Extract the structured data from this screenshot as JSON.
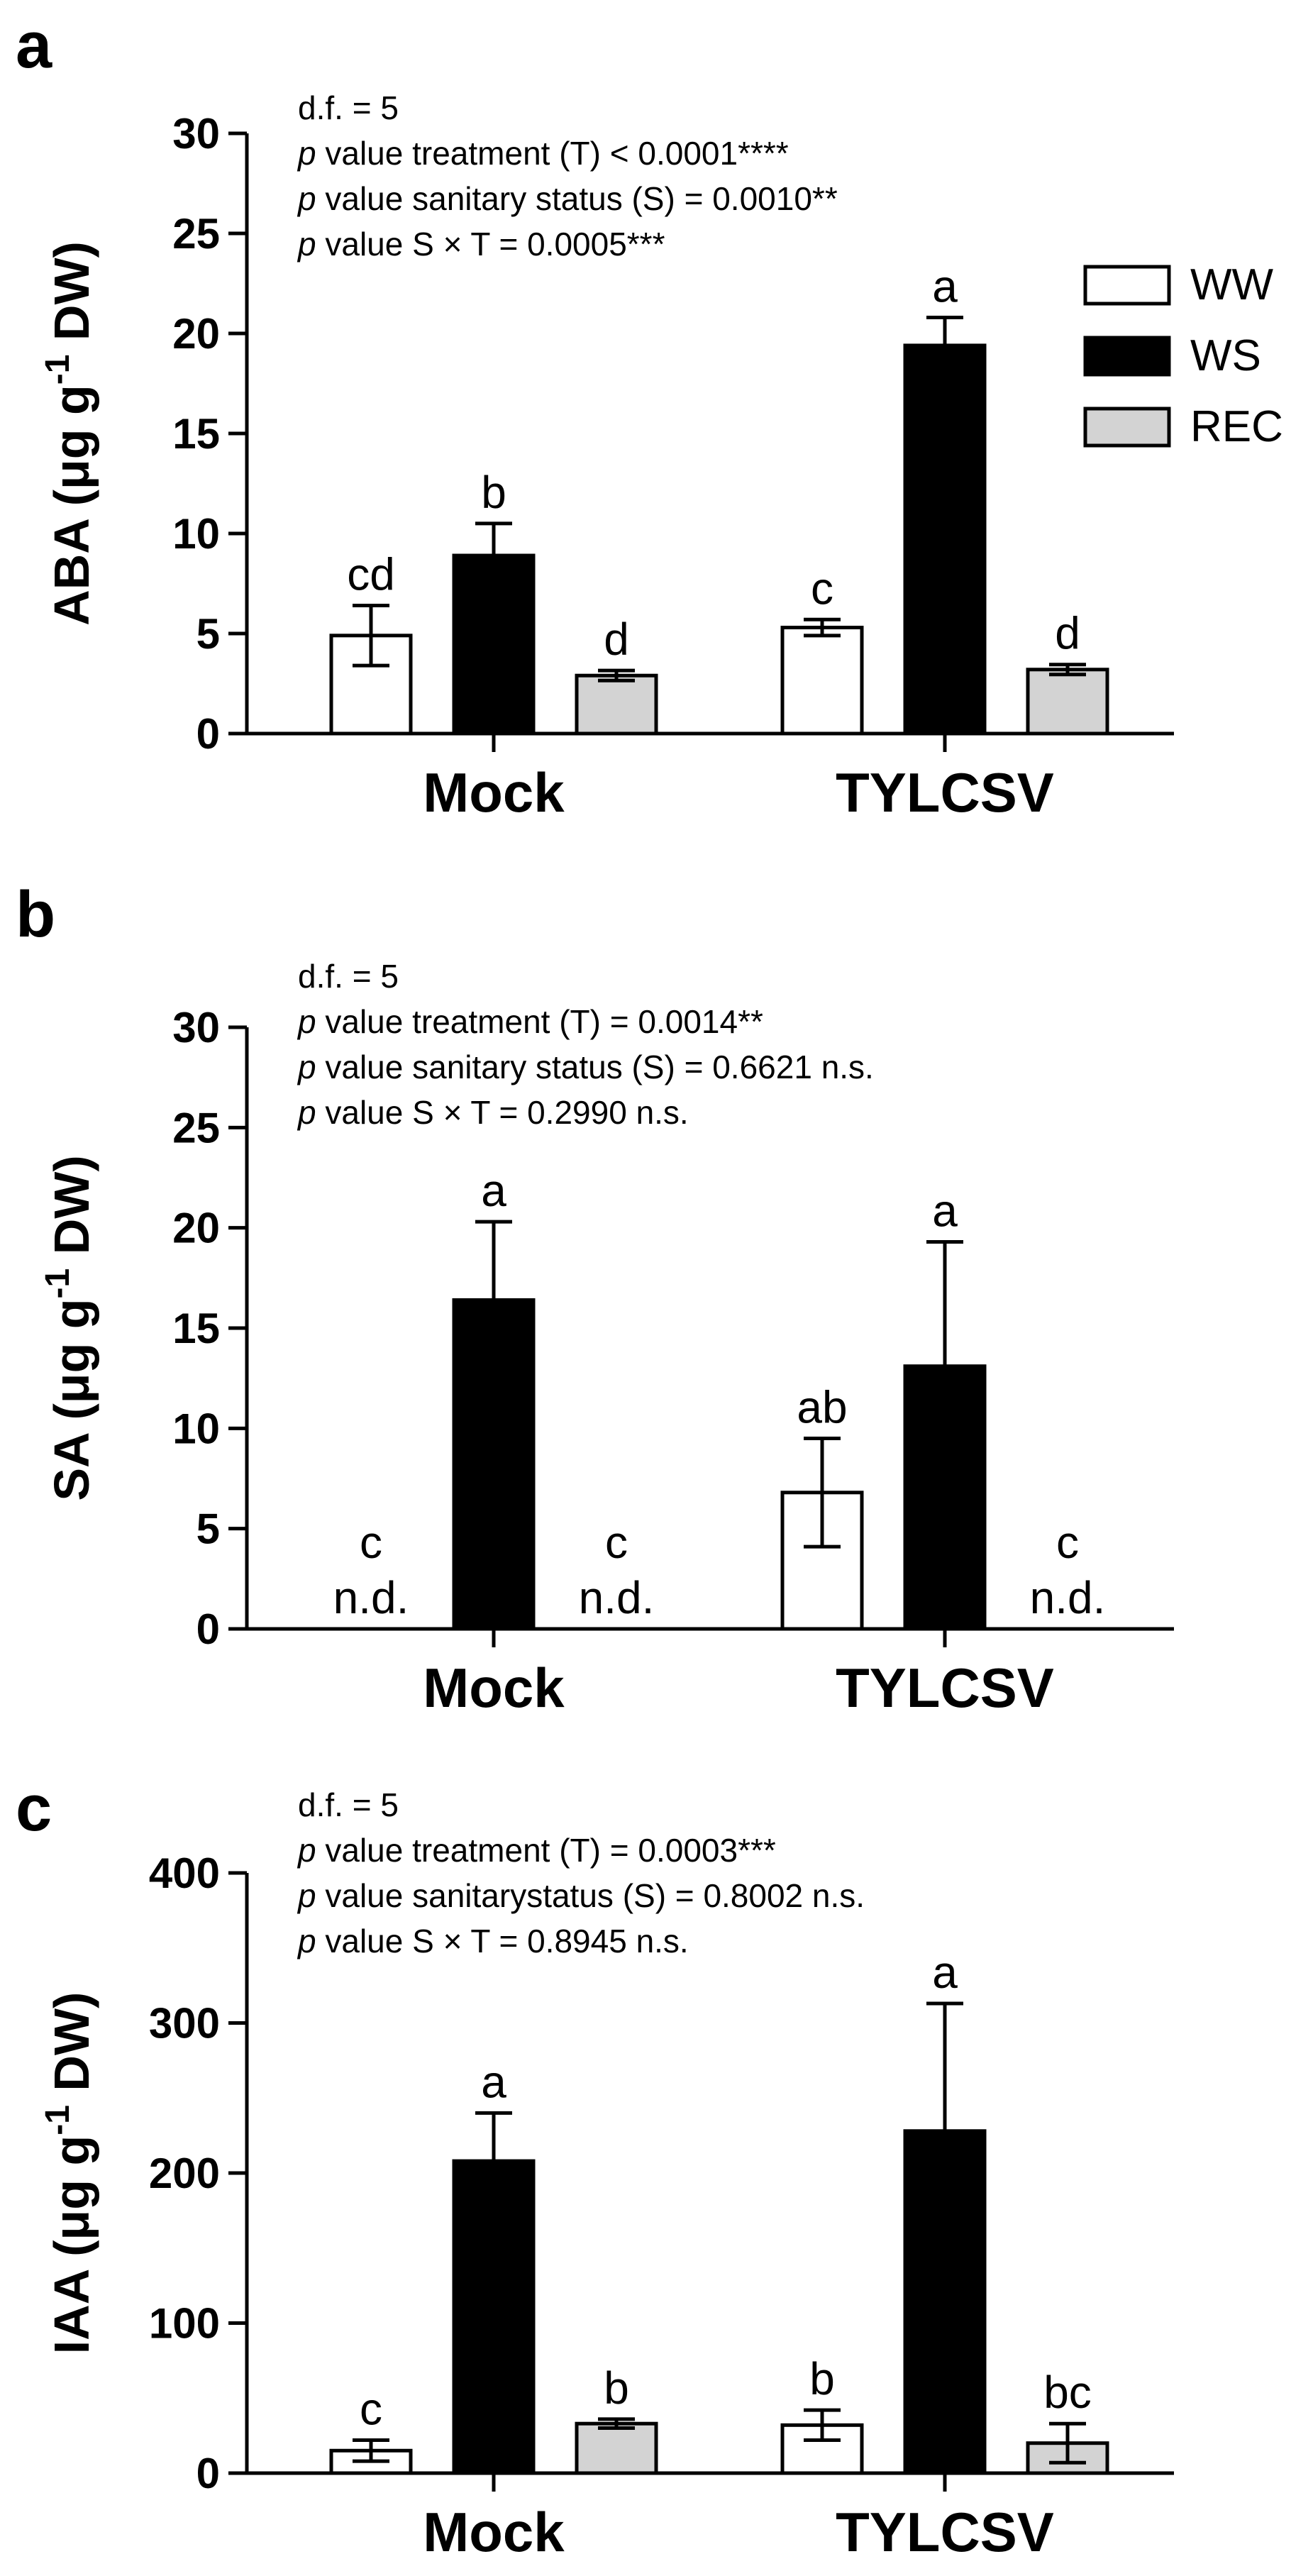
{
  "chart_data": [
    {
      "type": "bar",
      "panel": "a",
      "ylabel": "ABA (μg g-1 DW)",
      "ylabel_parts": [
        "ABA (",
        "μ",
        "g g",
        "-1",
        " DW)"
      ],
      "ylim": [
        0,
        30
      ],
      "yticks": [
        0,
        5,
        10,
        15,
        20,
        25,
        30
      ],
      "categories": [
        "Mock",
        "TYLCSV"
      ],
      "series": [
        {
          "name": "WW",
          "values": [
            4.9,
            5.3
          ],
          "errors": [
            1.5,
            0.4
          ],
          "sig": [
            "cd",
            "c"
          ],
          "nd": [
            false,
            false
          ]
        },
        {
          "name": "WS",
          "values": [
            8.9,
            19.4
          ],
          "errors": [
            1.6,
            1.4
          ],
          "sig": [
            "b",
            "a"
          ],
          "nd": [
            false,
            false
          ]
        },
        {
          "name": "REC",
          "values": [
            2.9,
            3.2
          ],
          "errors": [
            0.25,
            0.25
          ],
          "sig": [
            "d",
            "d"
          ],
          "nd": [
            false,
            false
          ]
        }
      ],
      "stats": [
        {
          "it": "",
          "text": "d.f. = 5"
        },
        {
          "it": "p",
          "text": " value treatment (T) < 0.0001****"
        },
        {
          "it": "p",
          "text": " value sanitary status (S) = 0.0010**"
        },
        {
          "it": "p",
          "text": " value S × T = 0.0005***"
        }
      ],
      "legend": true
    },
    {
      "type": "bar",
      "panel": "b",
      "ylabel": "SA (μg g-1 DW)",
      "ylabel_parts": [
        "SA (",
        "μ",
        "g g",
        "-1",
        " DW)"
      ],
      "ylim": [
        0,
        30
      ],
      "yticks": [
        0,
        5,
        10,
        15,
        20,
        25,
        30
      ],
      "categories": [
        "Mock",
        "TYLCSV"
      ],
      "series": [
        {
          "name": "WW",
          "values": [
            0,
            6.8
          ],
          "errors": [
            0,
            2.7
          ],
          "sig": [
            "c",
            "ab"
          ],
          "nd": [
            true,
            false
          ]
        },
        {
          "name": "WS",
          "values": [
            16.4,
            13.1
          ],
          "errors": [
            3.9,
            6.2
          ],
          "sig": [
            "a",
            "a"
          ],
          "nd": [
            false,
            false
          ]
        },
        {
          "name": "REC",
          "values": [
            0,
            0
          ],
          "errors": [
            0,
            0
          ],
          "sig": [
            "c",
            "c"
          ],
          "nd": [
            true,
            true
          ]
        }
      ],
      "stats": [
        {
          "it": "",
          "text": "d.f. = 5"
        },
        {
          "it": "p",
          "text": " value treatment (T) = 0.0014**"
        },
        {
          "it": "p",
          "text": " value sanitary status (S) = 0.6621 n.s."
        },
        {
          "it": "p",
          "text": " value S × T = 0.2990 n.s."
        }
      ],
      "legend": false
    },
    {
      "type": "bar",
      "panel": "c",
      "ylabel": "IAA (μg g-1 DW)",
      "ylabel_parts": [
        "IAA (",
        "μ",
        "g g",
        "-1",
        " DW)"
      ],
      "ylim": [
        0,
        400
      ],
      "yticks": [
        0,
        100,
        200,
        300,
        400
      ],
      "categories": [
        "Mock",
        "TYLCSV"
      ],
      "series": [
        {
          "name": "WW",
          "values": [
            15,
            32
          ],
          "errors": [
            7,
            10
          ],
          "sig": [
            "c",
            "b"
          ],
          "nd": [
            false,
            false
          ]
        },
        {
          "name": "WS",
          "values": [
            208,
            228
          ],
          "errors": [
            32,
            85
          ],
          "sig": [
            "a",
            "a"
          ],
          "nd": [
            false,
            false
          ]
        },
        {
          "name": "REC",
          "values": [
            33,
            20
          ],
          "errors": [
            3,
            13
          ],
          "sig": [
            "b",
            "bc"
          ],
          "nd": [
            false,
            false
          ]
        }
      ],
      "stats": [
        {
          "it": "",
          "text": "d.f. = 5"
        },
        {
          "it": "p",
          "text": " value treatment (T) = 0.0003***"
        },
        {
          "it": "p",
          "text": " value sanitarystatus (S) = 0.8002 n.s."
        },
        {
          "it": "p",
          "text": " value S × T = 0.8945 n.s."
        }
      ],
      "legend": false
    }
  ],
  "series_colors": {
    "WW": "#ffffff",
    "WS": "#000000",
    "REC": "#d3d3d3"
  },
  "nd_text": "n.d."
}
